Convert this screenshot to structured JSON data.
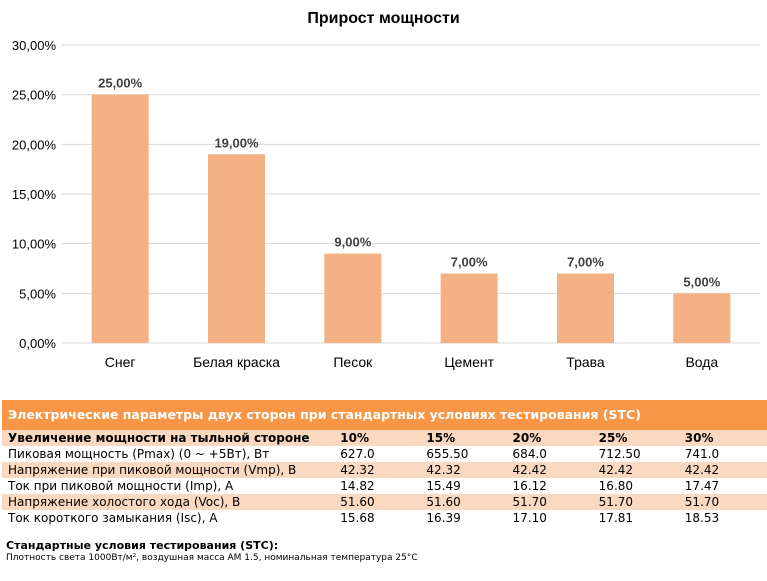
{
  "chart_data": {
    "type": "bar",
    "title": "Прирост мощности",
    "categories": [
      "Снег",
      "Белая краска",
      "Песок",
      "Цемент",
      "Трава",
      "Вода"
    ],
    "values": [
      25,
      19,
      9,
      7,
      7,
      5
    ],
    "value_labels": [
      "25,00%",
      "19,00%",
      "9,00%",
      "7,00%",
      "7,00%",
      "5,00%"
    ],
    "ylim": [
      0,
      30
    ],
    "yticks": [
      0,
      5,
      10,
      15,
      20,
      25,
      30
    ],
    "ytick_labels": [
      "0,00%",
      "5,00%",
      "10,00%",
      "15,00%",
      "20,00%",
      "25,00%",
      "30,00%"
    ],
    "grid": true,
    "bar_color": "#f4b183",
    "grid_color": "#d9d9d9"
  },
  "table": {
    "title": "Электрические параметры двух сторон при стандартных условиях тестирования (STC)",
    "header_label": "Увеличение мощности на тыльной стороне",
    "columns": [
      "10%",
      "15%",
      "20%",
      "25%",
      "30%"
    ],
    "rows": [
      {
        "label": "Пиковая мощность (Pmax) (0 ~ +5Вт), Вт",
        "values": [
          "627.0",
          "655.50",
          "684.0",
          "712.50",
          "741.0"
        ]
      },
      {
        "label": "Напряжение при пиковой мощности (Vmp), В",
        "values": [
          "42.32",
          "42.32",
          "42.42",
          "42.42",
          "42.42"
        ]
      },
      {
        "label": "Ток при пиковой мощности (Imp), А",
        "values": [
          "14.82",
          "15.49",
          "16.12",
          "16.80",
          "17.47"
        ]
      },
      {
        "label": "Напряжение холостого хода (Voc), В",
        "values": [
          "51.60",
          "51.60",
          "51.70",
          "51.70",
          "51.70"
        ]
      },
      {
        "label": "Ток короткого замыкания (Isc), А",
        "values": [
          "15.68",
          "16.39",
          "17.10",
          "17.81",
          "18.53"
        ]
      }
    ],
    "header_color": "#f79646",
    "stripe_color": "#fbd9c0"
  },
  "footer": {
    "title": "Стандартные условия тестирования (STC):",
    "note": "Плотность света 1000Вт/м², воздушная масса AM 1.5, номинальная температура 25°C"
  }
}
